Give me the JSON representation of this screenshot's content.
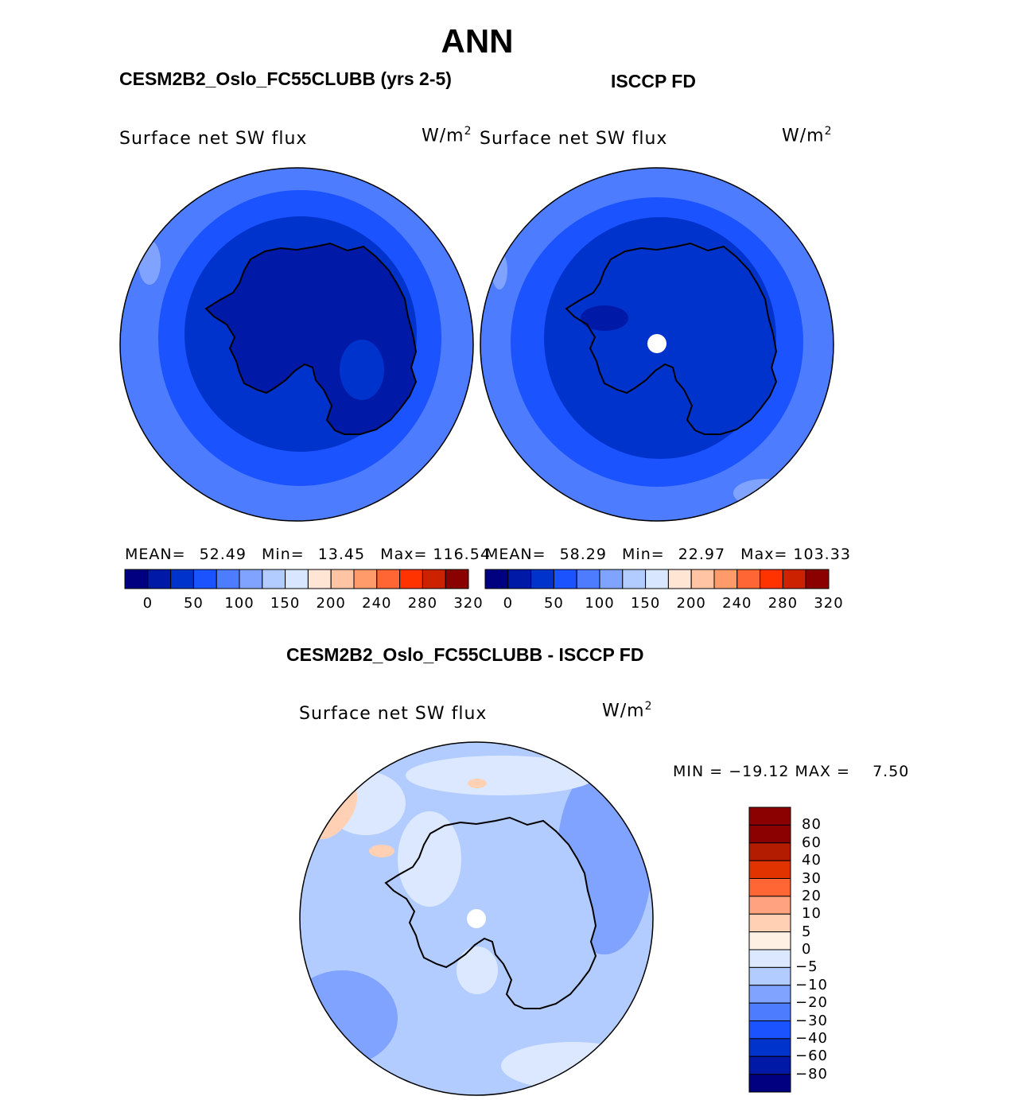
{
  "title": "ANN",
  "colors": {
    "abs_scale": [
      "#000080",
      "#0019a6",
      "#0033cc",
      "#1a53ff",
      "#4d7cff",
      "#80a3ff",
      "#b3ccff",
      "#d9e6ff",
      "#ffe5d4",
      "#ffc4a3",
      "#ff9a6b",
      "#ff6633",
      "#ff3300",
      "#cc2200",
      "#8b0000"
    ],
    "diff_scale": [
      "#8b0000",
      "#b31c00",
      "#e03300",
      "#ff6633",
      "#ffa280",
      "#ffd0b3",
      "#fff0e4",
      "#dbe8ff",
      "#b3ccff",
      "#80a3ff",
      "#4d7cff",
      "#1a53ff",
      "#0033cc",
      "#0019a6",
      "#000080"
    ],
    "outline": "#000000"
  },
  "top_left": {
    "header": "CESM2B2_Oslo_FC55CLUBB (yrs 2-5)",
    "variable": "Surface net SW flux",
    "units_base": "W/m",
    "units_exp": "2",
    "stats": {
      "mean_label": "MEAN=",
      "mean": "52.49",
      "min_label": "Min=",
      "min": "13.45",
      "max_label": "Max=",
      "max": "116.54"
    },
    "ticks": [
      "0",
      "50",
      "100",
      "150",
      "200",
      "240",
      "280",
      "320"
    ]
  },
  "top_right": {
    "header": "ISCCP FD",
    "variable": "Surface net SW flux",
    "units_base": "W/m",
    "units_exp": "2",
    "stats": {
      "mean_label": "MEAN=",
      "mean": "58.29",
      "min_label": "Min=",
      "min": "22.97",
      "max_label": "Max=",
      "max": "103.33"
    },
    "ticks": [
      "0",
      "50",
      "100",
      "150",
      "200",
      "240",
      "280",
      "320"
    ]
  },
  "bottom": {
    "header": "CESM2B2_Oslo_FC55CLUBB - ISCCP FD",
    "variable": "Surface net SW flux",
    "units_base": "W/m",
    "units_exp": "2",
    "minmax": "MIN = −19.12 MAX =    7.50",
    "legend_labels": [
      "80",
      "60",
      "40",
      "30",
      "20",
      "10",
      "5",
      "0",
      "−5",
      "−10",
      "−20",
      "−30",
      "−40",
      "−60",
      "−80"
    ]
  }
}
